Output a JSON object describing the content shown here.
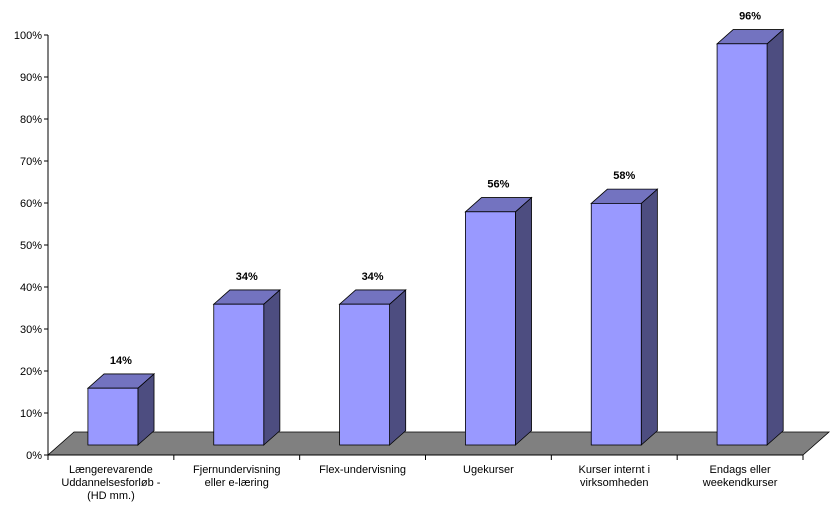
{
  "chart_data": {
    "type": "bar",
    "style": "3d-column",
    "categories": [
      [
        "Længerevarende",
        "Uddannelsesforløb -",
        "(HD mm.)"
      ],
      [
        "Fjernundervisning",
        "eller e-læring"
      ],
      [
        "Flex-undervisning"
      ],
      [
        "Ugekurser"
      ],
      [
        "Kurser internt i",
        "virksomheden"
      ],
      [
        "Endags eller",
        "weekendkurser"
      ]
    ],
    "values": [
      14,
      34,
      34,
      56,
      58,
      96
    ],
    "data_labels": [
      "14%",
      "34%",
      "34%",
      "56%",
      "58%",
      "96%"
    ],
    "y_ticks": [
      "0%",
      "10%",
      "20%",
      "30%",
      "40%",
      "50%",
      "60%",
      "70%",
      "80%",
      "90%",
      "100%"
    ],
    "ylim": [
      0,
      100
    ],
    "title": "",
    "xlabel": "",
    "ylabel": "",
    "grid": false,
    "legend": "none",
    "colors": {
      "bar_front": "#9999ff",
      "bar_side": "#4d4d80",
      "bar_top": "#7373c0",
      "floor": "#808080",
      "axis": "#000000"
    }
  }
}
